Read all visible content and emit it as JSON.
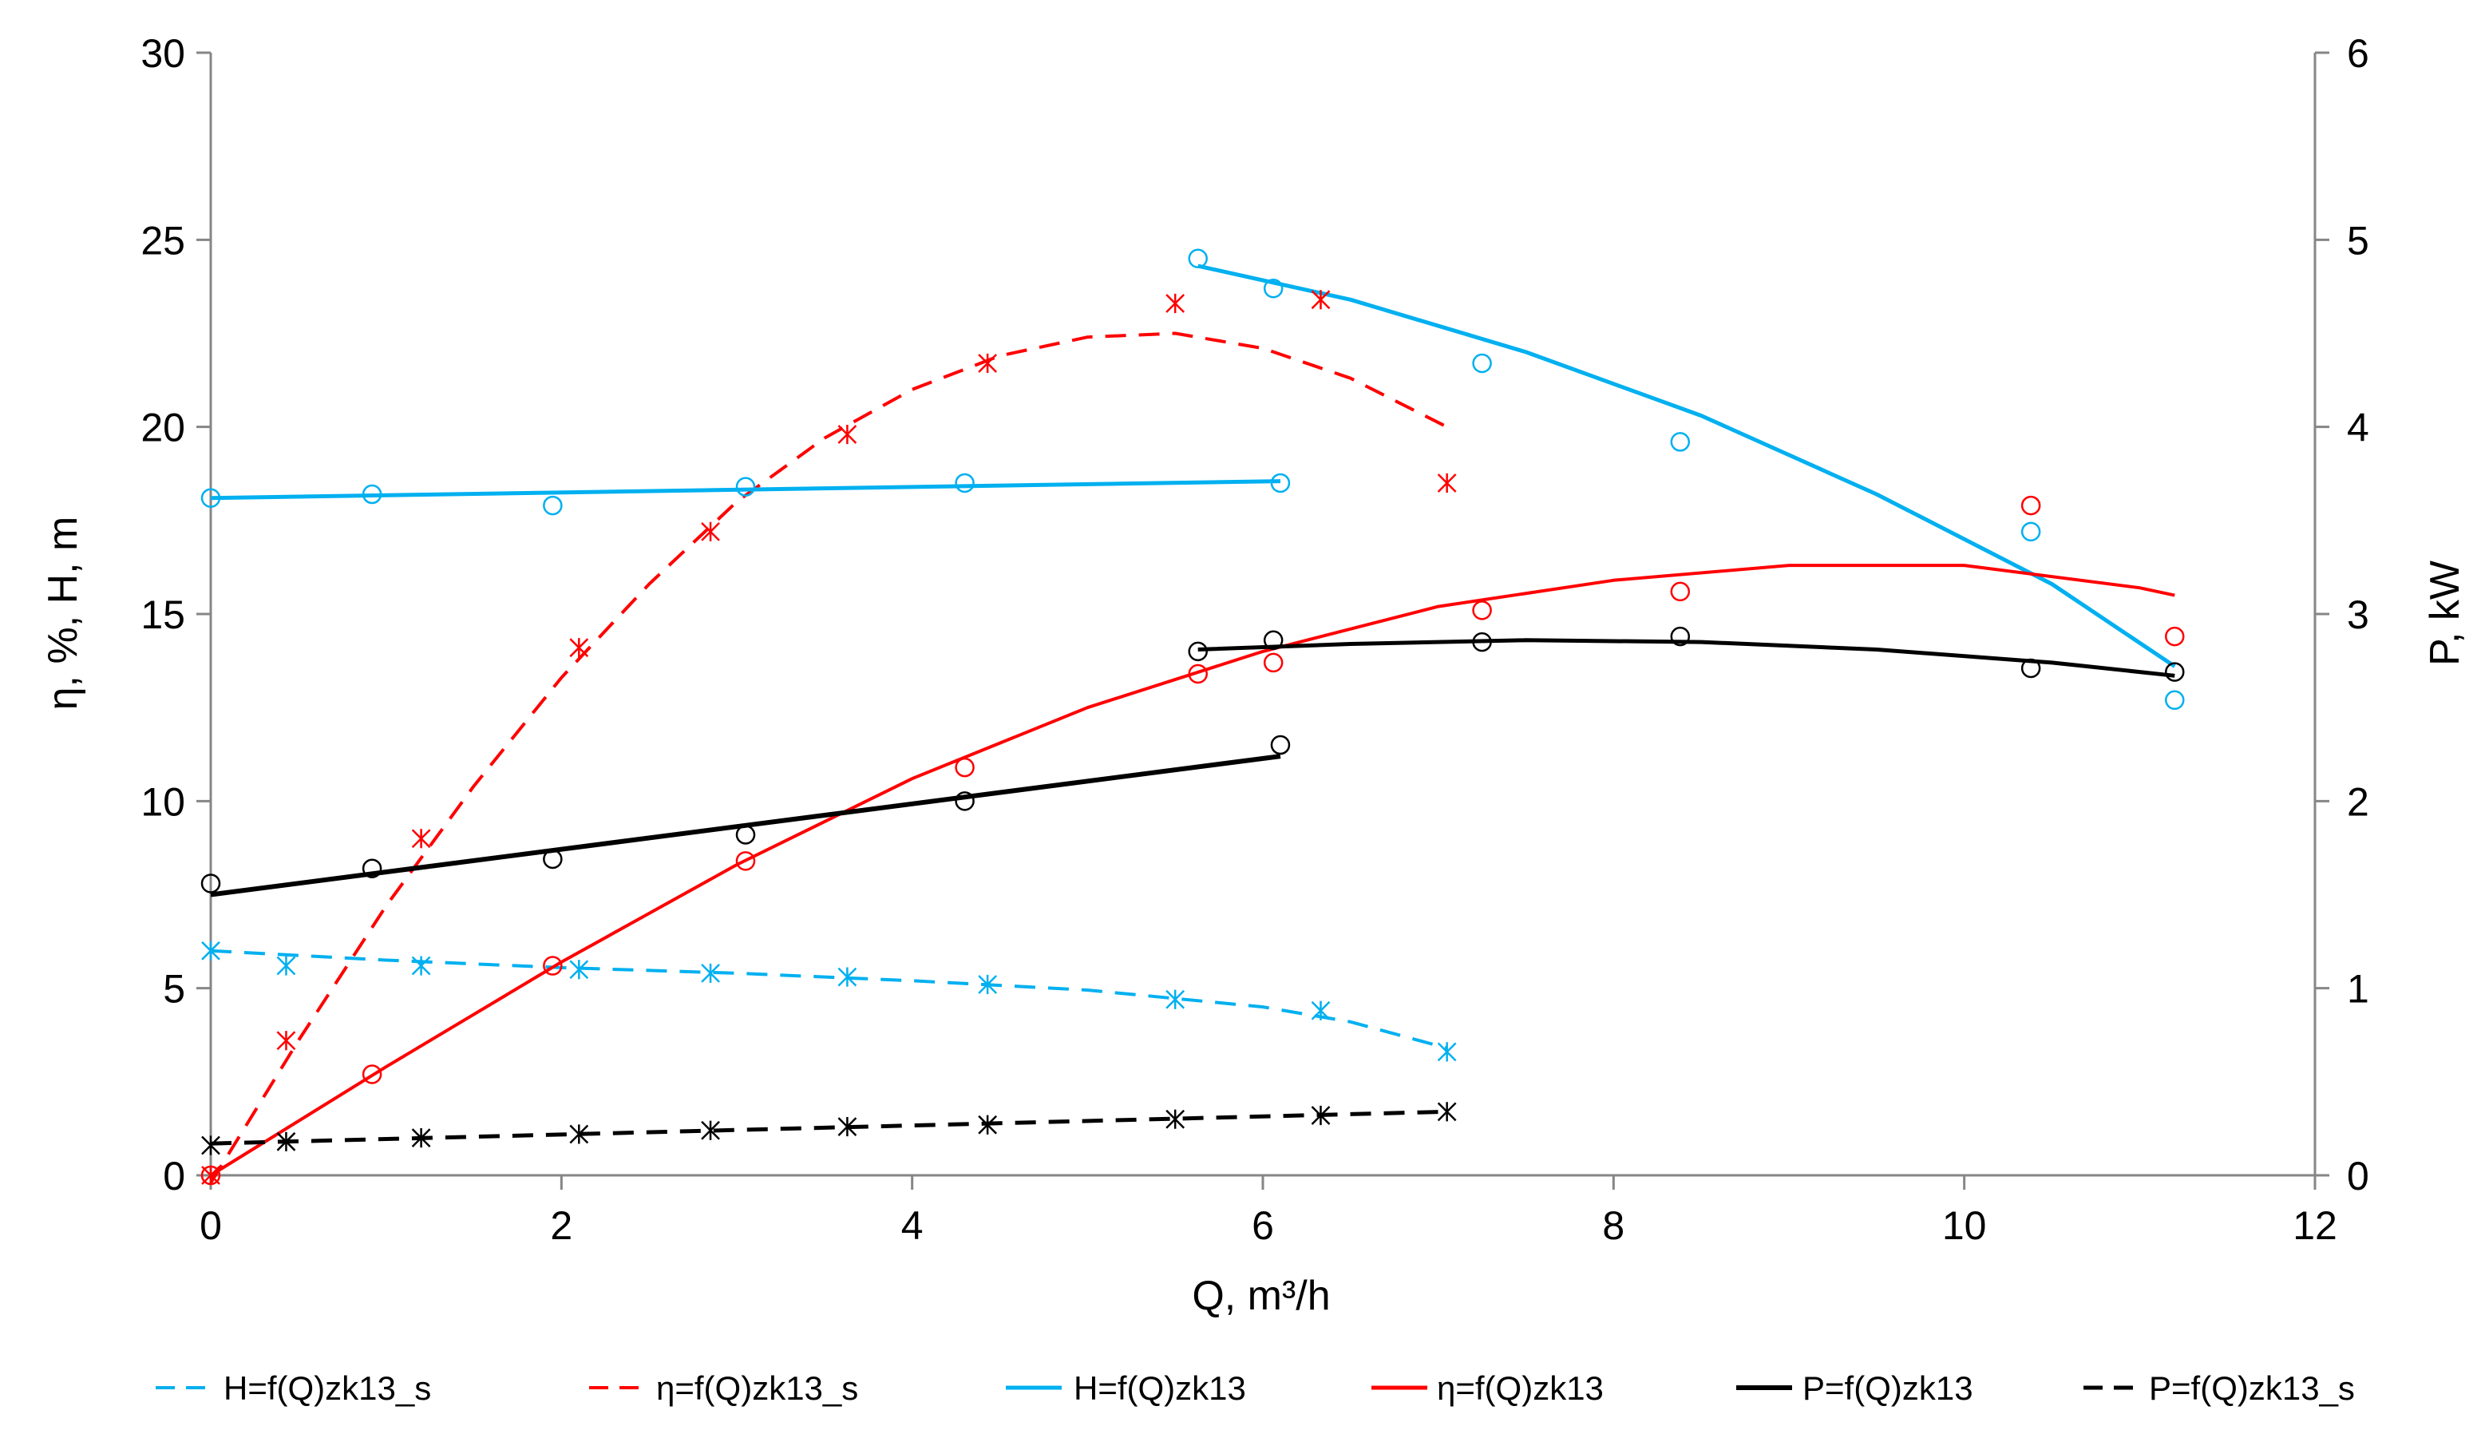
{
  "chart_data": {
    "type": "scatter",
    "title": "",
    "xlabel": "Q, m³/h",
    "ylabel_left": "η, %, H, m",
    "ylabel_right": "P, kW",
    "xlim": [
      0,
      12
    ],
    "ylim_left": [
      0,
      30
    ],
    "ylim_right": [
      0,
      6
    ],
    "grid": false,
    "legend_position": "bottom",
    "x_ticks": [
      "0",
      "2",
      "4",
      "6",
      "8",
      "10",
      "12"
    ],
    "y_left_ticks": [
      "0",
      "5",
      "10",
      "15",
      "20",
      "25",
      "30"
    ],
    "y_right_ticks": [
      "0",
      "1",
      "2",
      "3",
      "4",
      "5",
      "6"
    ],
    "colors": {
      "blue": "#00b0f0",
      "red": "#ff0000",
      "black": "#000000"
    },
    "legend": [
      "H=f(Q)zk13_s",
      "η=f(Q)zk13_s",
      "H=f(Q)zk13",
      "η=f(Q)zk13",
      "P=f(Q)zk13",
      "P=f(Q)zk13_s"
    ],
    "series": [
      {
        "name": "H=f(Q)zk13_s",
        "axis": "left",
        "color": "blue",
        "dash": true,
        "marker": "star",
        "line_width": 4,
        "x": [
          0,
          0.43,
          1.2,
          2.1,
          2.85,
          3.63,
          4.43,
          5.5,
          6.33,
          7.05
        ],
        "y": [
          6.0,
          5.6,
          5.6,
          5.5,
          5.4,
          5.3,
          5.1,
          4.7,
          4.4,
          3.3
        ],
        "fit": [
          [
            0,
            6.0
          ],
          [
            1,
            5.75
          ],
          [
            2,
            5.55
          ],
          [
            3,
            5.4
          ],
          [
            4,
            5.2
          ],
          [
            5,
            4.95
          ],
          [
            6,
            4.5
          ],
          [
            6.5,
            4.1
          ],
          [
            7.05,
            3.4
          ]
        ]
      },
      {
        "name": "η=f(Q)zk13_s",
        "axis": "left",
        "color": "red",
        "dash": true,
        "marker": "star",
        "line_width": 4,
        "x": [
          0,
          0.43,
          1.2,
          2.1,
          2.85,
          3.63,
          4.43,
          5.5,
          6.33,
          7.05
        ],
        "y": [
          0,
          3.6,
          9.0,
          14.1,
          17.2,
          19.8,
          21.7,
          23.3,
          23.4,
          18.5
        ],
        "fit": [
          [
            0,
            -0.2
          ],
          [
            0.5,
            3.6
          ],
          [
            1,
            7.2
          ],
          [
            1.5,
            10.4
          ],
          [
            2,
            13.3
          ],
          [
            2.5,
            15.8
          ],
          [
            3,
            18.0
          ],
          [
            3.5,
            19.7
          ],
          [
            4,
            21.0
          ],
          [
            4.5,
            21.9
          ],
          [
            5,
            22.4
          ],
          [
            5.5,
            22.5
          ],
          [
            6,
            22.1
          ],
          [
            6.5,
            21.3
          ],
          [
            7.05,
            20.0
          ]
        ]
      },
      {
        "name": "H=f(Q)zk13",
        "axis": "left",
        "color": "blue",
        "dash": false,
        "marker": "circle",
        "line_width": 5,
        "segments": [
          {
            "x": [
              0,
              0.92,
              1.95,
              3.05,
              4.3,
              6.1
            ],
            "y": [
              18.1,
              18.2,
              17.9,
              18.4,
              18.5,
              18.5
            ],
            "fit": [
              [
                0,
                18.1
              ],
              [
                6.1,
                18.55
              ]
            ]
          },
          {
            "x": [
              5.63,
              6.06,
              7.25,
              8.38,
              10.38,
              11.2
            ],
            "y": [
              24.5,
              23.7,
              21.7,
              19.6,
              17.2,
              12.7
            ],
            "fit": [
              [
                5.63,
                24.3
              ],
              [
                6.5,
                23.4
              ],
              [
                7.5,
                22.0
              ],
              [
                8.5,
                20.3
              ],
              [
                9.5,
                18.2
              ],
              [
                10.5,
                15.8
              ],
              [
                11.2,
                13.6
              ]
            ]
          }
        ]
      },
      {
        "name": "η=f(Q)zk13",
        "axis": "left",
        "color": "red",
        "dash": false,
        "marker": "circle",
        "line_width": 4,
        "x": [
          0,
          0.92,
          1.95,
          3.05,
          4.3,
          5.63,
          6.06,
          7.25,
          8.38,
          10.38,
          11.2
        ],
        "y": [
          0,
          2.7,
          5.6,
          8.4,
          10.9,
          13.4,
          13.7,
          15.1,
          15.6,
          17.9,
          14.4
        ],
        "fit": [
          [
            0,
            0
          ],
          [
            1,
            2.9
          ],
          [
            2,
            5.7
          ],
          [
            3,
            8.3
          ],
          [
            4,
            10.6
          ],
          [
            5,
            12.5
          ],
          [
            6,
            14.0
          ],
          [
            7,
            15.2
          ],
          [
            8,
            15.9
          ],
          [
            9,
            16.3
          ],
          [
            10,
            16.3
          ],
          [
            11,
            15.7
          ],
          [
            11.2,
            15.5
          ]
        ]
      },
      {
        "name": "P=f(Q)zk13",
        "axis": "right",
        "color": "black",
        "dash": false,
        "marker": "circle",
        "line_width": 6,
        "segments": [
          {
            "x": [
              0,
              0.92,
              1.95,
              3.05,
              4.3,
              6.1
            ],
            "y": [
              1.56,
              1.64,
              1.69,
              1.82,
              2.0,
              2.3
            ],
            "fit": [
              [
                0,
                1.5
              ],
              [
                6.1,
                2.24
              ]
            ]
          },
          {
            "x": [
              5.63,
              6.06,
              7.25,
              8.38,
              10.38,
              11.2
            ],
            "y": [
              2.8,
              2.86,
              2.85,
              2.88,
              2.71,
              2.69
            ],
            "fit": [
              [
                5.63,
                2.81
              ],
              [
                6.5,
                2.84
              ],
              [
                7.5,
                2.86
              ],
              [
                8.5,
                2.85
              ],
              [
                9.5,
                2.81
              ],
              [
                10.5,
                2.74
              ],
              [
                11.2,
                2.67
              ]
            ],
            "line_width": 5
          }
        ]
      },
      {
        "name": "P=f(Q)zk13_s",
        "axis": "right",
        "color": "black",
        "dash": true,
        "marker": "star",
        "line_width": 5,
        "x": [
          0,
          0.43,
          1.2,
          2.1,
          2.85,
          3.63,
          4.43,
          5.5,
          6.33,
          7.05
        ],
        "y": [
          0.16,
          0.18,
          0.2,
          0.22,
          0.24,
          0.26,
          0.27,
          0.3,
          0.32,
          0.34
        ],
        "fit": [
          [
            0,
            0.17
          ],
          [
            7.05,
            0.34
          ]
        ]
      }
    ]
  }
}
